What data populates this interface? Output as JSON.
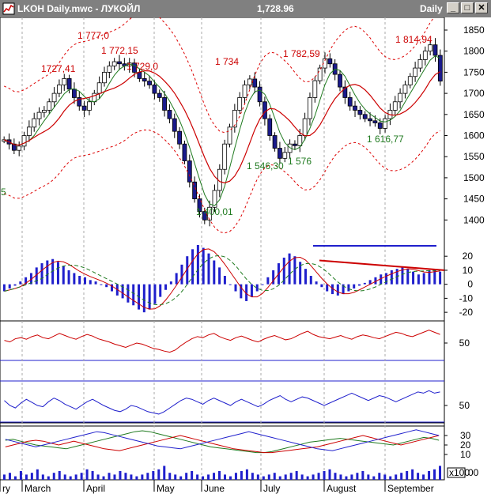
{
  "window": {
    "title": "LKOH Daily.mwc - ЛУКОЙЛ",
    "last_price": "1,728.96",
    "period": "Daily",
    "minimize_label": "_",
    "maximize_label": "□",
    "close_label": "✕"
  },
  "colors": {
    "price_up": "#ffffff",
    "price_down": "#1a1a8c",
    "ma_fast": "#1f7a1f",
    "ma_slow": "#cc0000",
    "envelope": "#dd0000",
    "peak_label": "#cc0000",
    "trough_label": "#1f7a1f",
    "macd_hist": "#1f1fcc",
    "volume": "#1f1fcc",
    "trendline_blue": "#1f1fcc",
    "trendline_red": "#cc0000"
  },
  "chart_data": [
    {
      "type": "line",
      "panel": "price",
      "ylim": [
        1350,
        1880
      ],
      "yticks": [
        1400,
        1450,
        1500,
        1550,
        1600,
        1650,
        1700,
        1750,
        1800,
        1850
      ],
      "months": [
        "ry",
        "March",
        "April",
        "May",
        "June",
        "July",
        "August",
        "September"
      ],
      "series": [
        {
          "values": [
            1590,
            1580,
            1565,
            1575,
            1600,
            1620,
            1640,
            1655,
            1660,
            1680,
            1700,
            1720,
            1735,
            1710,
            1690,
            1670,
            1660,
            1680,
            1700,
            1725,
            1750,
            1765,
            1775,
            1770,
            1765,
            1772,
            1750,
            1735,
            1729,
            1720,
            1700,
            1690,
            1660,
            1640,
            1610,
            1580,
            1540,
            1490,
            1450,
            1420,
            1400,
            1430,
            1470,
            1520,
            1580,
            1620,
            1660,
            1690,
            1720,
            1734,
            1715,
            1680,
            1640,
            1600,
            1570,
            1546,
            1560,
            1580,
            1576,
            1600,
            1640,
            1690,
            1730,
            1760,
            1782,
            1770,
            1745,
            1715,
            1690,
            1670,
            1660,
            1650,
            1640,
            1635,
            1630,
            1617,
            1640,
            1660,
            1680,
            1700,
            1720,
            1740,
            1760,
            1780,
            1800,
            1815,
            1790,
            1729
          ]
        }
      ],
      "annotations": [
        {
          "text": "1727,41",
          "kind": "peak"
        },
        {
          "text": "1 777,0",
          "kind": "peak"
        },
        {
          "text": "1 772,15",
          "kind": "peak"
        },
        {
          "text": "1 729,0",
          "kind": "peak"
        },
        {
          "text": "1 734",
          "kind": "peak"
        },
        {
          "text": "1 782,59",
          "kind": "peak"
        },
        {
          "text": "1 814,94",
          "kind": "peak"
        },
        {
          "text": "1 400,01",
          "kind": "trough"
        },
        {
          "text": "1 546,30",
          "kind": "trough"
        },
        {
          "text": "1 576",
          "kind": "trough"
        },
        {
          "text": "1 616,77",
          "kind": "trough"
        }
      ],
      "stray_label": "5"
    },
    {
      "type": "bar",
      "panel": "macd",
      "ylim": [
        -25,
        28
      ],
      "yticks": [
        20,
        10,
        0,
        -10,
        -20
      ],
      "values": [
        -5,
        -3,
        -1,
        2,
        5,
        8,
        12,
        15,
        17,
        18,
        16,
        13,
        10,
        8,
        6,
        5,
        3,
        2,
        0,
        -2,
        -5,
        -8,
        -10,
        -13,
        -15,
        -18,
        -20,
        -18,
        -14,
        -9,
        -4,
        2,
        8,
        14,
        20,
        25,
        28,
        26,
        22,
        17,
        12,
        6,
        0,
        -5,
        -10,
        -12,
        -9,
        -5,
        0,
        5,
        10,
        15,
        19,
        22,
        20,
        16,
        11,
        6,
        2,
        -2,
        -5,
        -7,
        -8,
        -7,
        -5,
        -3,
        -1,
        1,
        3,
        5,
        7,
        8,
        10,
        11,
        12,
        11,
        9,
        7,
        8,
        10,
        11,
        9
      ]
    },
    {
      "type": "line",
      "panel": "oscillator-red",
      "ytick_label": "50",
      "values": [
        55,
        52,
        58,
        60,
        57,
        62,
        65,
        60,
        58,
        63,
        68,
        64,
        60,
        57,
        62,
        66,
        63,
        58,
        55,
        52,
        48,
        45,
        42,
        46,
        50,
        48,
        44,
        40,
        38,
        35,
        33,
        37,
        45,
        52,
        58,
        62,
        60,
        65,
        68,
        62,
        58,
        55,
        60,
        63,
        59,
        55,
        52,
        57,
        61,
        64,
        60,
        56,
        58,
        63,
        68,
        72,
        66,
        62,
        60,
        58,
        61,
        64,
        60,
        57,
        62,
        65,
        63,
        60,
        58,
        62,
        66,
        70,
        68,
        64,
        62,
        66,
        70,
        74,
        70,
        66
      ]
    },
    {
      "type": "line",
      "panel": "oscillator-blue",
      "ytick_label": "50",
      "values": [
        58,
        50,
        46,
        54,
        60,
        55,
        50,
        48,
        56,
        62,
        58,
        52,
        48,
        44,
        50,
        56,
        60,
        55,
        50,
        46,
        42,
        40,
        44,
        50,
        48,
        44,
        40,
        38,
        36,
        40,
        46,
        52,
        58,
        62,
        60,
        56,
        52,
        58,
        62,
        58,
        54,
        50,
        56,
        60,
        56,
        52,
        48,
        52,
        58,
        62,
        66,
        60,
        56,
        60,
        64,
        62,
        58,
        54,
        50,
        54,
        58,
        62,
        66,
        70,
        66,
        62,
        58,
        62,
        66,
        64,
        60,
        56,
        60,
        64,
        68,
        72,
        70,
        74,
        70,
        72
      ]
    },
    {
      "type": "line",
      "panel": "dmi",
      "yticks": [
        30,
        20,
        10
      ],
      "series": [
        {
          "values": [
            25,
            26,
            24,
            22,
            20,
            19,
            18,
            17,
            16,
            18,
            20,
            22,
            24,
            26,
            28,
            30,
            32,
            34,
            35,
            34,
            32,
            30,
            28,
            26,
            24,
            22,
            20,
            18,
            17,
            16,
            15,
            14,
            13,
            12,
            12,
            13,
            15,
            17,
            19,
            21,
            23,
            24,
            25,
            26,
            27,
            26,
            25,
            24,
            23,
            22,
            21,
            20,
            22,
            24,
            26,
            28,
            27,
            25
          ]
        },
        {
          "values": [
            18,
            20,
            22,
            24,
            25,
            24,
            22,
            20,
            22,
            24,
            22,
            20,
            18,
            16,
            15,
            14,
            16,
            18,
            20,
            22,
            24,
            26,
            28,
            30,
            28,
            26,
            24,
            22,
            20,
            18,
            16,
            15,
            14,
            13,
            12,
            12,
            13,
            14,
            15,
            16,
            17,
            18,
            20,
            22,
            24,
            26,
            28,
            30,
            28,
            26,
            24,
            22,
            20,
            22,
            24,
            26,
            28,
            30
          ]
        },
        {
          "values": [
            26,
            24,
            22,
            20,
            18,
            20,
            22,
            24,
            26,
            28,
            30,
            32,
            34,
            33,
            31,
            29,
            27,
            25,
            23,
            21,
            19,
            18,
            17,
            16,
            18,
            20,
            22,
            24,
            26,
            28,
            30,
            32,
            34,
            32,
            30,
            28,
            26,
            24,
            22,
            20,
            18,
            16,
            15,
            14,
            16,
            18,
            20,
            22,
            24,
            26,
            28,
            30,
            32,
            34,
            36,
            34,
            32,
            30
          ]
        }
      ]
    },
    {
      "type": "bar",
      "panel": "volume",
      "ytick_label": "00",
      "unit_label": "x100",
      "values": [
        3,
        4,
        2,
        5,
        3,
        4,
        6,
        3,
        2,
        4,
        5,
        3,
        2,
        3,
        4,
        6,
        5,
        3,
        2,
        4,
        3,
        5,
        4,
        3,
        2,
        3,
        4,
        5,
        6,
        8,
        4,
        3,
        2,
        4,
        5,
        3,
        2,
        3,
        4,
        5,
        3,
        2,
        4,
        5,
        6,
        4,
        3,
        2,
        3,
        4,
        2,
        3,
        4,
        5,
        3,
        2,
        3,
        4,
        5,
        6,
        4,
        3,
        2,
        3,
        4,
        5,
        3,
        2,
        4,
        3,
        2,
        3,
        4,
        5,
        6,
        4,
        3,
        5,
        6,
        8
      ]
    }
  ]
}
